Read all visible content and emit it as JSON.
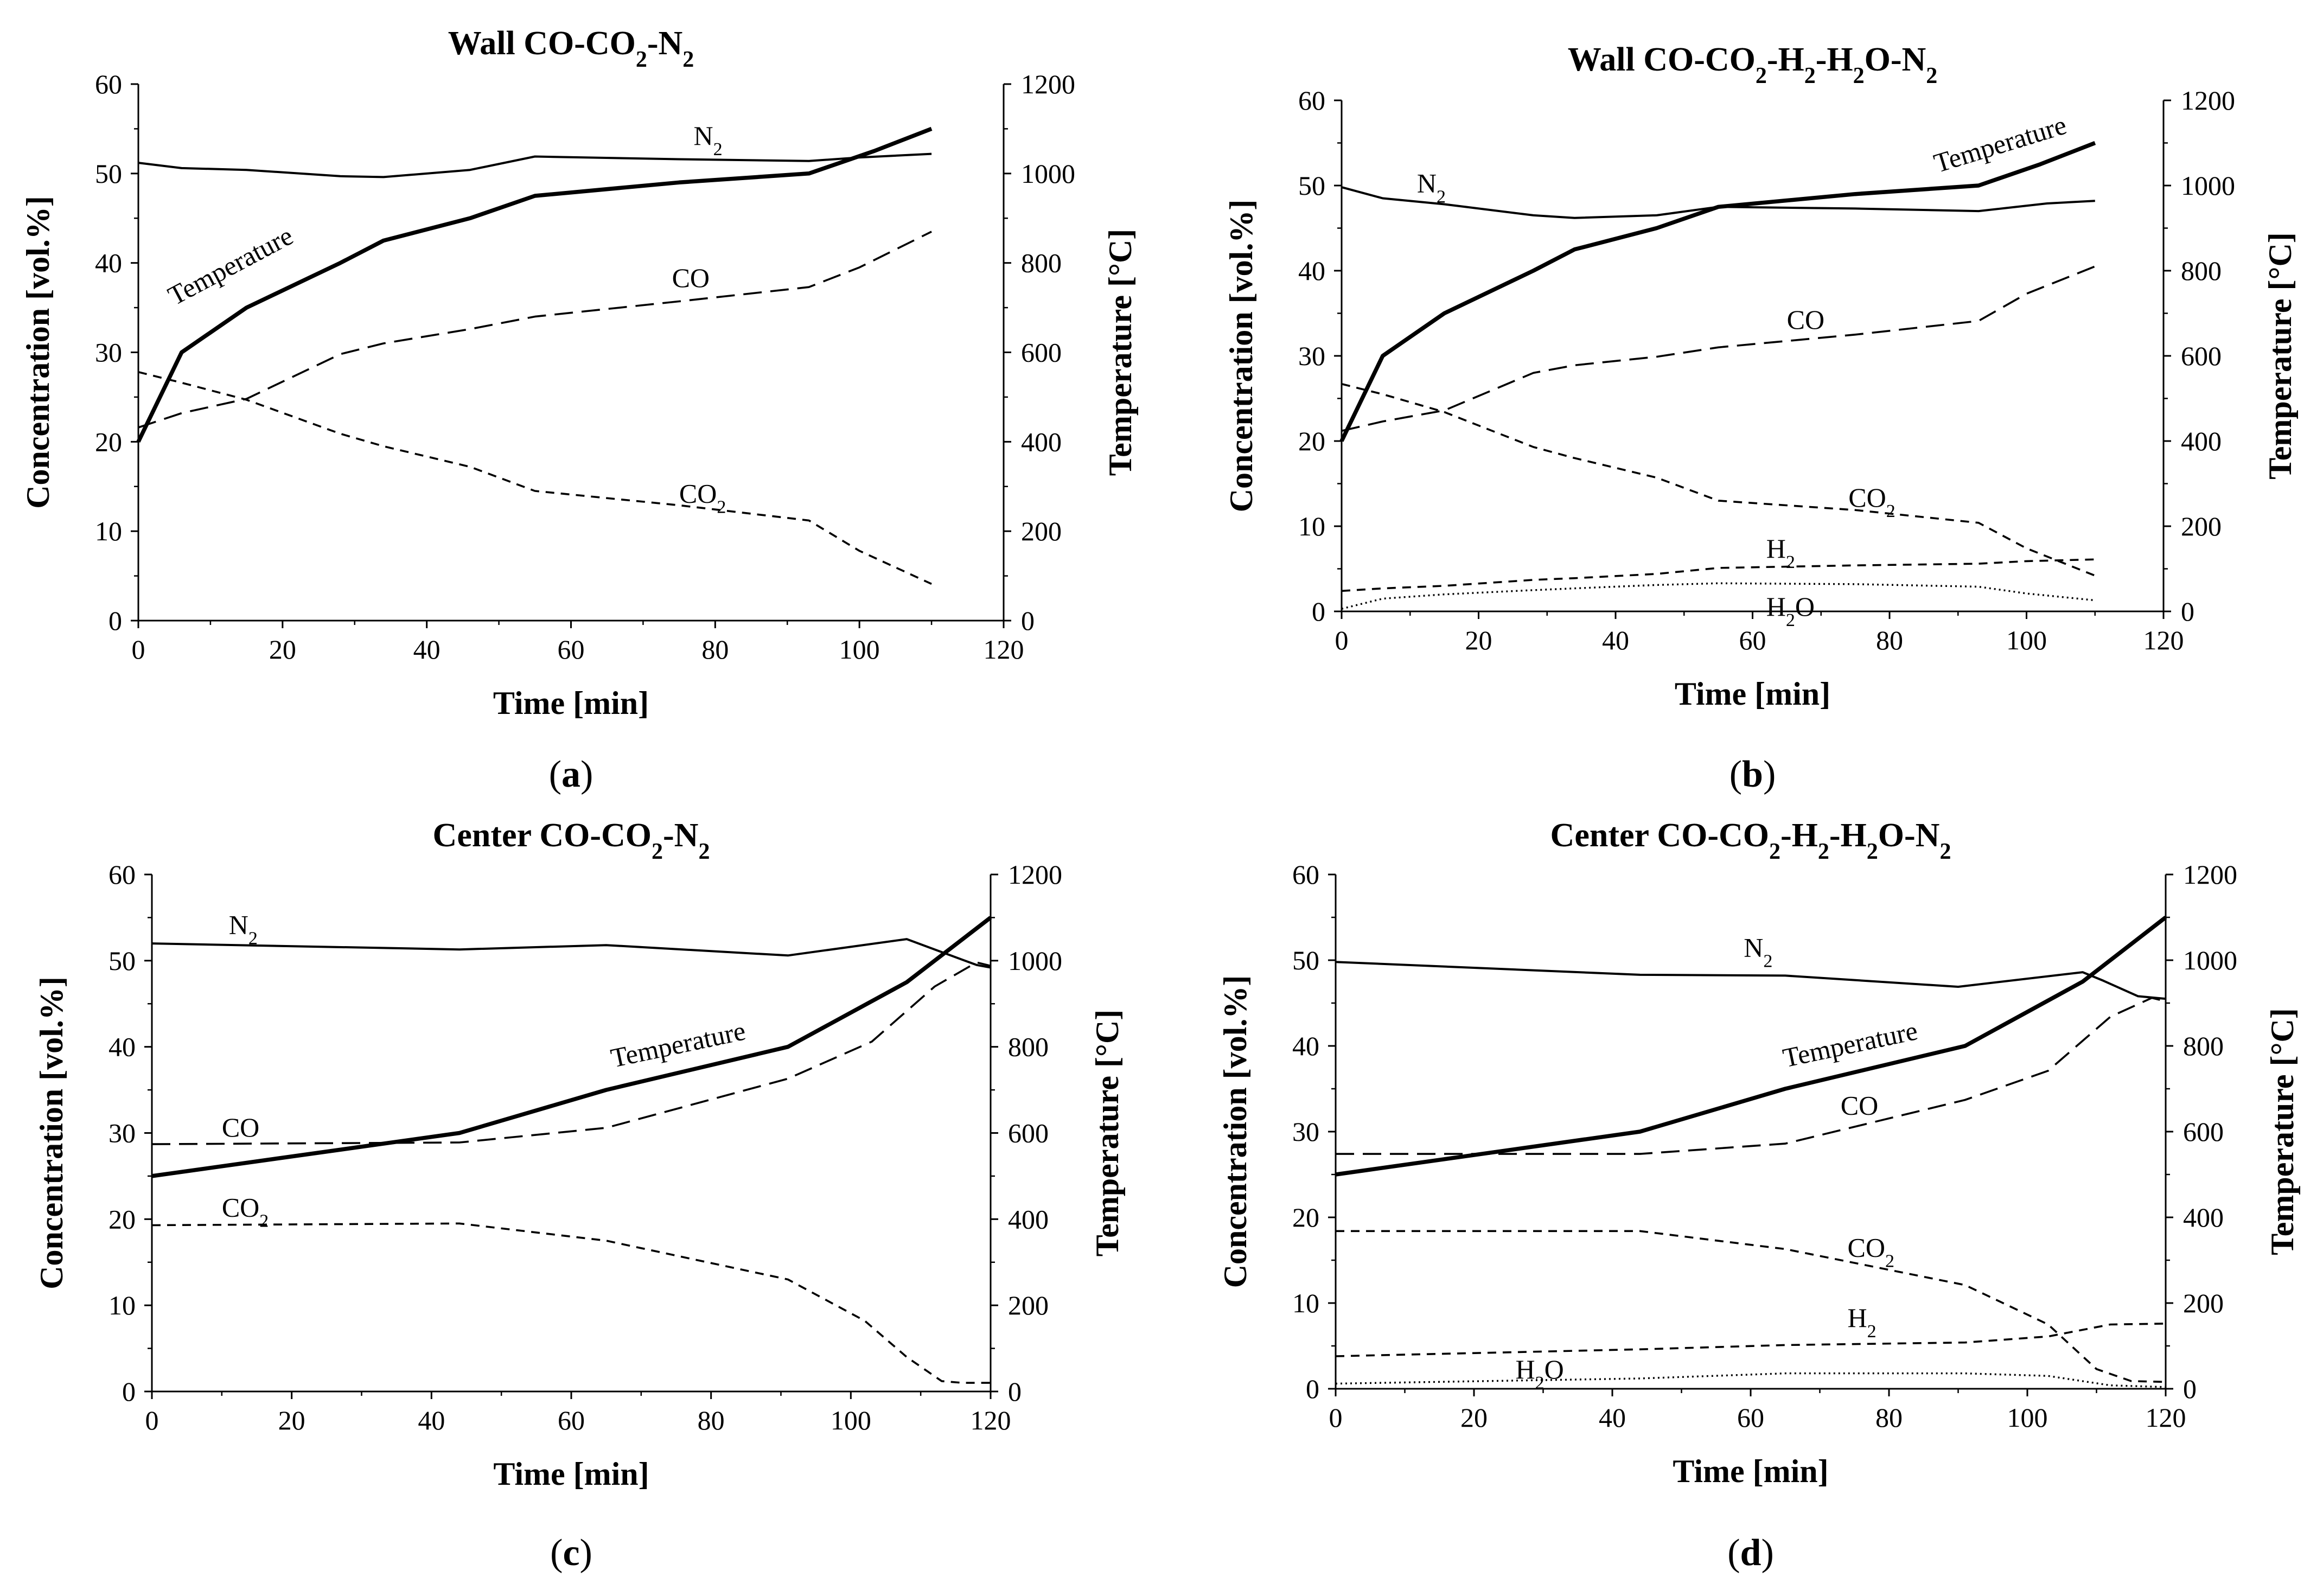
{
  "chart_data": [
    {
      "type": "line",
      "panel_label": "a",
      "title_parts": [
        "Wall  CO-CO",
        "2",
        "-N",
        "2"
      ],
      "xlabel": "Time [min]",
      "ylabel_left": "Concentration [vol.%]",
      "ylabel_right": "Temperature  [°C]",
      "xlim": [
        0,
        120
      ],
      "xticks": [
        0,
        20,
        40,
        60,
        80,
        100,
        120
      ],
      "ylim_left": [
        0,
        60
      ],
      "yticks_left": [
        0,
        10,
        20,
        30,
        40,
        50,
        60
      ],
      "ylim_right": [
        0,
        1200
      ],
      "yticks_right": [
        0,
        200,
        400,
        600,
        800,
        1000,
        1200
      ],
      "grid": false,
      "series": [
        {
          "name_parts": [
            "N",
            "2"
          ],
          "axis": "left",
          "style": "solid",
          "label_at": [
            77,
            53.2
          ],
          "x": [
            0,
            6,
            15,
            28,
            34,
            46,
            55,
            75,
            93,
            100,
            110
          ],
          "y": [
            51.2,
            50.6,
            50.4,
            49.7,
            49.6,
            50.4,
            51.9,
            51.6,
            51.4,
            51.8,
            52.2
          ]
        },
        {
          "name_parts": [
            "Temperature"
          ],
          "axis": "right",
          "style": "bold",
          "label_at": [
            5,
            35.2
          ],
          "label_rotate": -28,
          "x": [
            0,
            6,
            15,
            28,
            34,
            46,
            55,
            75,
            93,
            102,
            110
          ],
          "y": [
            400,
            600,
            700,
            800,
            850,
            900,
            950,
            980,
            1000,
            1050,
            1100
          ]
        },
        {
          "name_parts": [
            "CO"
          ],
          "axis": "left",
          "style": "dash",
          "label_at": [
            74,
            37.3
          ],
          "x": [
            0,
            6,
            15,
            28,
            34,
            46,
            55,
            75,
            93,
            100,
            110
          ],
          "y": [
            21.6,
            23.2,
            24.8,
            29.8,
            31.0,
            32.6,
            34.0,
            35.7,
            37.3,
            39.5,
            43.5
          ]
        },
        {
          "name_parts": [
            "CO",
            "2"
          ],
          "axis": "left",
          "style": "shortdash",
          "label_at": [
            75,
            13.2
          ],
          "x": [
            0,
            6,
            15,
            28,
            34,
            46,
            55,
            75,
            93,
            100,
            110
          ],
          "y": [
            27.8,
            26.6,
            24.7,
            20.9,
            19.5,
            17.2,
            14.5,
            12.9,
            11.2,
            7.8,
            4.1
          ]
        }
      ]
    },
    {
      "type": "line",
      "panel_label": "b",
      "title_parts": [
        "Wall  CO-CO",
        "2",
        "-H",
        "2",
        "-H",
        "2",
        "O-N",
        "2"
      ],
      "xlabel": "Time [min]",
      "ylabel_left": "Concentration [vol.%]",
      "ylabel_right": "Temperature  [°C]",
      "xlim": [
        0,
        120
      ],
      "xticks": [
        0,
        20,
        40,
        60,
        80,
        100,
        120
      ],
      "ylim_left": [
        0,
        60
      ],
      "yticks_left": [
        0,
        10,
        20,
        30,
        40,
        50,
        60
      ],
      "ylim_right": [
        0,
        1200
      ],
      "yticks_right": [
        0,
        200,
        400,
        600,
        800,
        1000,
        1200
      ],
      "grid": false,
      "series": [
        {
          "name_parts": [
            "N",
            "2"
          ],
          "axis": "left",
          "style": "solid",
          "label_at": [
            11,
            49.2
          ],
          "x": [
            0,
            6,
            15,
            28,
            34,
            46,
            55,
            75,
            93,
            103,
            110
          ],
          "y": [
            49.8,
            48.5,
            47.8,
            46.5,
            46.2,
            46.5,
            47.5,
            47.3,
            47.0,
            47.9,
            48.2
          ]
        },
        {
          "name_parts": [
            "Temperature"
          ],
          "axis": "right",
          "style": "bold",
          "label_at": [
            87,
            51.5
          ],
          "label_rotate": -17,
          "x": [
            0,
            6,
            15,
            28,
            34,
            46,
            55,
            75,
            93,
            102,
            110
          ],
          "y": [
            400,
            600,
            700,
            800,
            850,
            900,
            950,
            980,
            1000,
            1050,
            1100
          ]
        },
        {
          "name_parts": [
            "CO"
          ],
          "axis": "left",
          "style": "dash",
          "label_at": [
            65,
            33.2
          ],
          "x": [
            0,
            6,
            15,
            28,
            34,
            46,
            55,
            75,
            93,
            100,
            110
          ],
          "y": [
            21.2,
            22.3,
            23.6,
            28.0,
            28.9,
            29.9,
            31.0,
            32.5,
            34.1,
            37.3,
            40.5
          ]
        },
        {
          "name_parts": [
            "CO",
            "2"
          ],
          "axis": "left",
          "style": "shortdash",
          "label_at": [
            74,
            12.3
          ],
          "x": [
            0,
            6,
            15,
            28,
            34,
            46,
            55,
            75,
            93,
            100,
            110
          ],
          "y": [
            26.7,
            25.5,
            23.4,
            19.3,
            18.0,
            15.7,
            13.0,
            11.9,
            10.4,
            7.4,
            4.2
          ]
        },
        {
          "name_parts": [
            "H",
            "2"
          ],
          "axis": "left",
          "style": "shortdash",
          "label_at": [
            62,
            6.3
          ],
          "x": [
            0,
            6,
            15,
            28,
            34,
            46,
            55,
            75,
            93,
            100,
            110
          ],
          "y": [
            2.4,
            2.7,
            3.0,
            3.7,
            3.9,
            4.4,
            5.1,
            5.4,
            5.6,
            5.9,
            6.1
          ]
        },
        {
          "name_parts": [
            "H",
            "2",
            "O"
          ],
          "axis": "left",
          "style": "dot",
          "label_at": [
            62,
            -0.5
          ],
          "x": [
            0,
            6,
            15,
            28,
            34,
            46,
            55,
            75,
            93,
            100,
            110
          ],
          "y": [
            0.3,
            1.5,
            2.0,
            2.5,
            2.7,
            3.1,
            3.3,
            3.2,
            2.9,
            2.1,
            1.3
          ]
        }
      ]
    },
    {
      "type": "line",
      "panel_label": "c",
      "title_parts": [
        "Center  CO-CO",
        "2",
        "-N",
        "2"
      ],
      "xlabel": "Time [min]",
      "ylabel_left": "Concentration [vol.%]",
      "ylabel_right": "Temperature  [°C]",
      "xlim": [
        0,
        120
      ],
      "xticks": [
        0,
        20,
        40,
        60,
        80,
        100,
        120
      ],
      "ylim_left": [
        0,
        60
      ],
      "yticks_left": [
        0,
        10,
        20,
        30,
        40,
        50,
        60
      ],
      "ylim_right": [
        0,
        1200
      ],
      "yticks_right": [
        0,
        200,
        400,
        600,
        800,
        1000,
        1200
      ],
      "grid": false,
      "series": [
        {
          "name_parts": [
            "N",
            "2"
          ],
          "axis": "left",
          "style": "solid",
          "label_at": [
            11,
            53.1
          ],
          "x": [
            0,
            44,
            65,
            91,
            108,
            112,
            118,
            120
          ],
          "y": [
            52.0,
            51.3,
            51.8,
            50.6,
            52.5,
            51.3,
            49.5,
            49.2
          ]
        },
        {
          "name_parts": [
            "Temperature"
          ],
          "axis": "right",
          "style": "bold",
          "label_at": [
            66,
            37.6
          ],
          "label_rotate": -12,
          "x": [
            0,
            44,
            65,
            91,
            108,
            120
          ],
          "y": [
            500,
            600,
            700,
            800,
            950,
            1100
          ]
        },
        {
          "name_parts": [
            "CO"
          ],
          "axis": "left",
          "style": "dash",
          "label_at": [
            10,
            29.6
          ],
          "x": [
            0,
            44,
            65,
            91,
            103,
            112,
            118,
            120
          ],
          "y": [
            28.7,
            28.9,
            30.6,
            36.3,
            40.6,
            47.0,
            49.8,
            49.4
          ]
        },
        {
          "name_parts": [
            "CO",
            "2"
          ],
          "axis": "left",
          "style": "shortdash",
          "label_at": [
            10,
            20.3
          ],
          "x": [
            0,
            44,
            65,
            91,
            102,
            108,
            113,
            116,
            120
          ],
          "y": [
            19.3,
            19.5,
            17.5,
            13.0,
            8.2,
            4.0,
            1.2,
            1.0,
            1.0
          ]
        }
      ]
    },
    {
      "type": "line",
      "panel_label": "d",
      "title_parts": [
        "Center  CO-CO",
        "2",
        "-H",
        "2",
        "-H",
        "2",
        "O-N",
        "2"
      ],
      "xlabel": "Time [min]",
      "ylabel_left": "Concentration [vol.%]",
      "ylabel_right": "Temperature  [°C]",
      "xlim": [
        0,
        120
      ],
      "xticks": [
        0,
        20,
        40,
        60,
        80,
        100,
        120
      ],
      "ylim_left": [
        0,
        60
      ],
      "yticks_left": [
        0,
        10,
        20,
        30,
        40,
        50,
        60
      ],
      "ylim_right": [
        0,
        1200
      ],
      "yticks_right": [
        0,
        200,
        400,
        600,
        800,
        1000,
        1200
      ],
      "grid": false,
      "series": [
        {
          "name_parts": [
            "N",
            "2"
          ],
          "axis": "left",
          "style": "solid",
          "label_at": [
            59,
            50.4
          ],
          "x": [
            0,
            44,
            65,
            90,
            108,
            111,
            116,
            120
          ],
          "y": [
            49.8,
            48.3,
            48.2,
            46.9,
            48.6,
            47.6,
            45.8,
            45.5
          ]
        },
        {
          "name_parts": [
            "Temperature"
          ],
          "axis": "right",
          "style": "bold",
          "label_at": [
            65,
            37.5
          ],
          "label_rotate": -12,
          "x": [
            0,
            44,
            65,
            91,
            108,
            120
          ],
          "y": [
            500,
            600,
            700,
            800,
            950,
            1100
          ]
        },
        {
          "name_parts": [
            "CO"
          ],
          "axis": "left",
          "style": "dash",
          "label_at": [
            73,
            32.0
          ],
          "x": [
            0,
            44,
            65,
            91,
            103,
            112,
            118,
            120
          ],
          "y": [
            27.4,
            27.4,
            28.6,
            33.7,
            37.1,
            43.4,
            45.6,
            45.2
          ]
        },
        {
          "name_parts": [
            "CO",
            "2"
          ],
          "axis": "left",
          "style": "shortdash",
          "label_at": [
            74,
            15.4
          ],
          "x": [
            0,
            44,
            65,
            91,
            103,
            110,
            115,
            120
          ],
          "y": [
            18.4,
            18.4,
            16.3,
            12.1,
            7.5,
            2.3,
            0.9,
            0.8
          ]
        },
        {
          "name_parts": [
            "H",
            "2"
          ],
          "axis": "left",
          "style": "shortdash",
          "label_at": [
            74,
            7.2
          ],
          "x": [
            0,
            44,
            65,
            91,
            103,
            112,
            120
          ],
          "y": [
            3.8,
            4.6,
            5.1,
            5.4,
            6.1,
            7.5,
            7.6
          ]
        },
        {
          "name_parts": [
            "H",
            "2",
            "O"
          ],
          "axis": "left",
          "style": "dot",
          "label_at": [
            26,
            1.2
          ],
          "x": [
            0,
            44,
            65,
            91,
            103,
            112,
            120
          ],
          "y": [
            0.6,
            1.2,
            1.8,
            1.8,
            1.5,
            0.4,
            0.2
          ]
        }
      ]
    }
  ]
}
